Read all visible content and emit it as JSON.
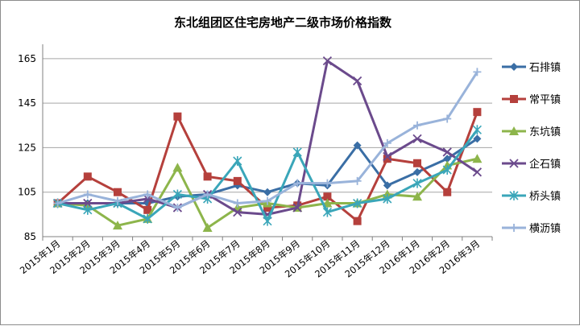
{
  "chart_data": {
    "type": "line",
    "title": "东北组团区住宅房地产二级市场价格指数",
    "categories": [
      "2015年1月",
      "2015年2月",
      "2015年3月",
      "2015年4月",
      "2015年5月",
      "2015年6月",
      "2015年7月",
      "2015年8月",
      "2015年9月",
      "2015年10月",
      "2015年11月",
      "2015年12月",
      "2016年1月",
      "2016年2月",
      "2016年3月"
    ],
    "yticks": [
      85,
      105,
      125,
      145,
      165
    ],
    "ylim": [
      85,
      170
    ],
    "grid": "horizontal",
    "legend_position": "right",
    "series": [
      {
        "name": "石排镇",
        "color": "#3a6ea5",
        "marker": "diamond",
        "values": [
          100,
          100,
          100,
          100,
          103,
          104,
          108,
          105,
          109,
          108,
          126,
          108,
          114,
          120,
          129
        ]
      },
      {
        "name": "常平镇",
        "color": "#b5403c",
        "marker": "square",
        "values": [
          100,
          112,
          105,
          97,
          139,
          112,
          110,
          98,
          99,
          103,
          92,
          120,
          118,
          105,
          141
        ]
      },
      {
        "name": "东坑镇",
        "color": "#8db54b",
        "marker": "triangle",
        "values": [
          100,
          99,
          90,
          93,
          116,
          89,
          98,
          100,
          98,
          100,
          100,
          104,
          103,
          117,
          120
        ]
      },
      {
        "name": "企石镇",
        "color": "#6b4a8c",
        "marker": "x",
        "values": [
          100,
          100,
          100,
          102,
          98,
          104,
          96,
          95,
          98,
          164,
          155,
          121,
          129,
          123,
          114
        ]
      },
      {
        "name": "桥头镇",
        "color": "#3aa6b9",
        "marker": "star",
        "values": [
          100,
          97,
          100,
          93,
          104,
          102,
          119,
          92,
          123,
          96,
          100,
          102,
          109,
          115,
          133
        ]
      },
      {
        "name": "横沥镇",
        "color": "#99b3da",
        "marker": "plus",
        "values": [
          100,
          104,
          101,
          104,
          98,
          104,
          100,
          101,
          109,
          109,
          110,
          127,
          135,
          138,
          159
        ]
      }
    ]
  }
}
